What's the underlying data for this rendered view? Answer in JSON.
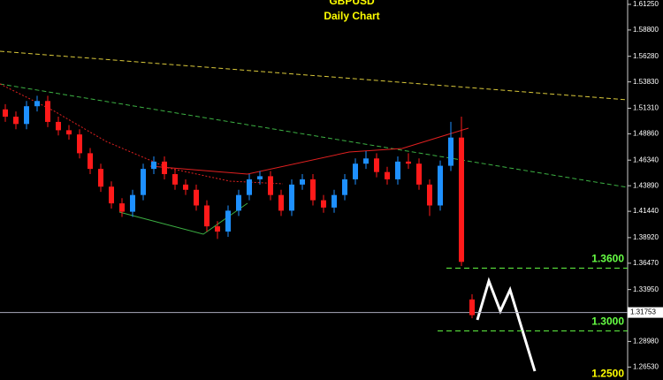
{
  "chart_data": {
    "type": "candlestick",
    "title": "GBPUSD",
    "subtitle": "Daily Chart",
    "up_color": "#1e90ff",
    "down_color": "#ff1a1a",
    "open": [
      1.512,
      1.505,
      1.498,
      1.515,
      1.52,
      1.5,
      1.492,
      1.488,
      1.47,
      1.455,
      1.438,
      1.422,
      1.414,
      1.43,
      1.455,
      1.462,
      1.45,
      1.44,
      1.435,
      1.42,
      1.4,
      1.395,
      1.415,
      1.43,
      1.445,
      1.448,
      1.43,
      1.415,
      1.44,
      1.445,
      1.425,
      1.418,
      1.43,
      1.445,
      1.46,
      1.465,
      1.452,
      1.445,
      1.462,
      1.46,
      1.44,
      1.42,
      1.458,
      1.485,
      1.33
    ],
    "high": [
      1.517,
      1.51,
      1.52,
      1.525,
      1.525,
      1.505,
      1.497,
      1.493,
      1.475,
      1.46,
      1.443,
      1.427,
      1.435,
      1.46,
      1.467,
      1.467,
      1.455,
      1.445,
      1.44,
      1.425,
      1.405,
      1.42,
      1.435,
      1.45,
      1.453,
      1.453,
      1.435,
      1.445,
      1.45,
      1.45,
      1.43,
      1.435,
      1.45,
      1.465,
      1.472,
      1.47,
      1.457,
      1.467,
      1.47,
      1.465,
      1.445,
      1.463,
      1.5,
      1.505,
      1.335
    ],
    "low": [
      1.5,
      1.493,
      1.493,
      1.51,
      1.495,
      1.487,
      1.483,
      1.465,
      1.45,
      1.433,
      1.417,
      1.409,
      1.409,
      1.425,
      1.45,
      1.445,
      1.435,
      1.43,
      1.415,
      1.395,
      1.388,
      1.39,
      1.41,
      1.425,
      1.44,
      1.425,
      1.41,
      1.41,
      1.435,
      1.42,
      1.413,
      1.413,
      1.425,
      1.44,
      1.455,
      1.447,
      1.44,
      1.44,
      1.455,
      1.435,
      1.41,
      1.415,
      1.453,
      1.362,
      1.312
    ],
    "close": [
      1.505,
      1.498,
      1.515,
      1.52,
      1.5,
      1.492,
      1.488,
      1.47,
      1.455,
      1.438,
      1.422,
      1.414,
      1.43,
      1.455,
      1.462,
      1.45,
      1.44,
      1.435,
      1.42,
      1.4,
      1.395,
      1.415,
      1.43,
      1.445,
      1.448,
      1.43,
      1.415,
      1.44,
      1.445,
      1.425,
      1.418,
      1.43,
      1.445,
      1.46,
      1.465,
      1.452,
      1.445,
      1.462,
      1.46,
      1.44,
      1.42,
      1.458,
      1.485,
      1.366,
      1.315
    ],
    "ylim": [
      1.2529,
      1.6167
    ],
    "yticks": [
      {
        "value": 1.6125,
        "label": "1.61250"
      },
      {
        "value": 1.588,
        "label": "1.58800"
      },
      {
        "value": 1.5628,
        "label": "1.56280"
      },
      {
        "value": 1.5383,
        "label": "1.53830"
      },
      {
        "value": 1.5131,
        "label": "1.51310"
      },
      {
        "value": 1.4886,
        "label": "1.48860"
      },
      {
        "value": 1.4634,
        "label": "1.46340"
      },
      {
        "value": 1.4389,
        "label": "1.43890"
      },
      {
        "value": 1.4144,
        "label": "1.41440"
      },
      {
        "value": 1.3892,
        "label": "1.38920"
      },
      {
        "value": 1.3647,
        "label": "1.36470"
      },
      {
        "value": 1.3395,
        "label": "1.33950"
      },
      {
        "value": 1.2898,
        "label": "1.28980"
      },
      {
        "value": 1.2653,
        "label": "1.26530"
      }
    ],
    "current_price": {
      "value": 1.31753,
      "label": "1.31753"
    },
    "levels": [
      {
        "value": 1.36,
        "label": "1.3600",
        "color": "#66ff44"
      },
      {
        "value": 1.3,
        "label": "1.3000",
        "color": "#66ff44"
      },
      {
        "value": 1.25,
        "label": "1.2500",
        "color": "#ffff00"
      }
    ]
  }
}
